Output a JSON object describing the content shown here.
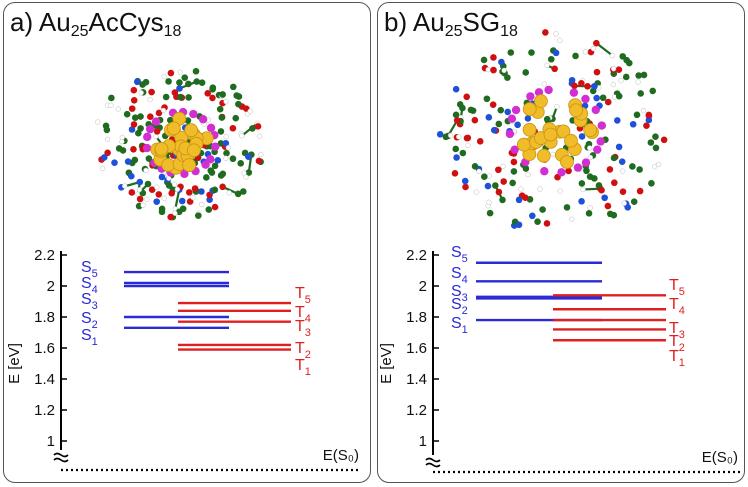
{
  "panels": [
    {
      "id": "a",
      "label_prefix": "a)",
      "formula": {
        "base": "Au",
        "sub1": "25",
        "ligand": "AcCys",
        "sub2": "18"
      },
      "energy_levels": {
        "ylabel": "E [eV]",
        "yticks": [
          "2.2",
          "2",
          "1.8",
          "1.6",
          "1.4",
          "1.2",
          "1"
        ],
        "ground_state_label": "E(S₀)",
        "singlets": [
          {
            "label": "S",
            "sub": "1",
            "value": 1.73
          },
          {
            "label": "S",
            "sub": "2",
            "value": 1.8
          },
          {
            "label": "S",
            "sub": "3",
            "value": 2.0
          },
          {
            "label": "S",
            "sub": "4",
            "value": 2.02
          },
          {
            "label": "S",
            "sub": "5",
            "value": 2.09
          }
        ],
        "triplets": [
          {
            "label": "T",
            "sub": "1",
            "value": 1.59
          },
          {
            "label": "T",
            "sub": "2",
            "value": 1.62
          },
          {
            "label": "T",
            "sub": "3",
            "value": 1.77
          },
          {
            "label": "T",
            "sub": "4",
            "value": 1.84
          },
          {
            "label": "T",
            "sub": "5",
            "value": 1.89
          }
        ]
      }
    },
    {
      "id": "b",
      "label_prefix": "b)",
      "formula": {
        "base": "Au",
        "sub1": "25",
        "ligand": "SG",
        "sub2": "18"
      },
      "energy_levels": {
        "ylabel": "E [eV]",
        "yticks": [
          "2.2",
          "2",
          "1.8",
          "1.6",
          "1.4",
          "1.2",
          "1"
        ],
        "ground_state_label": "E(S₀)",
        "singlets": [
          {
            "label": "S",
            "sub": "1",
            "value": 1.78
          },
          {
            "label": "S",
            "sub": "2",
            "value": 1.92
          },
          {
            "label": "S",
            "sub": "3",
            "value": 1.93
          },
          {
            "label": "S",
            "sub": "4",
            "value": 2.03
          },
          {
            "label": "S",
            "sub": "5",
            "value": 2.15
          }
        ],
        "triplets": [
          {
            "label": "T",
            "sub": "1",
            "value": 1.65
          },
          {
            "label": "T",
            "sub": "2",
            "value": 1.72
          },
          {
            "label": "T",
            "sub": "3",
            "value": 1.78
          },
          {
            "label": "T",
            "sub": "4",
            "value": 1.85
          },
          {
            "label": "T",
            "sub": "5",
            "value": 1.94
          }
        ]
      }
    }
  ],
  "colors": {
    "singlet": "#2a2ad6",
    "triplet": "#e02020",
    "gold": "#f0bc2a",
    "sulfur": "#d22ed2",
    "carbon": "#1f6b1f",
    "oxygen": "#d01010",
    "nitrogen": "#1e50d8",
    "hydrogen": "#ffffff"
  },
  "molecule_image": "Au25 nanocluster ball-and-stick model"
}
